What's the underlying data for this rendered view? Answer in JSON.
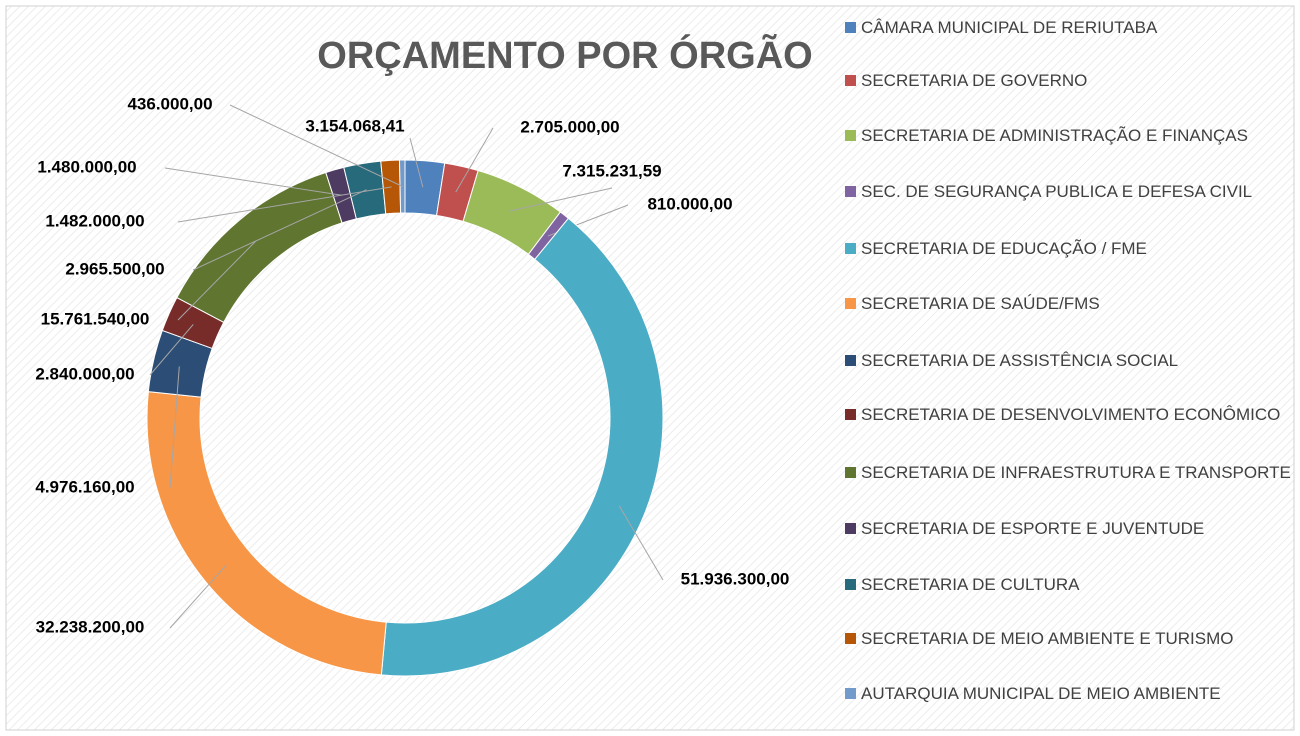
{
  "chart_data": {
    "type": "donut",
    "title": "ORÇAMENTO POR ÓRGÃO",
    "categories": [
      "CÂMARA MUNICIPAL DE RERIUTABA",
      "SECRETARIA DE GOVERNO",
      "SECRETARIA DE ADMINISTRAÇÃO E FINANÇAS",
      "SEC. DE SEGURANÇA PUBLICA E DEFESA CIVIL",
      "SECRETARIA DE EDUCAÇÃO / FME",
      "SECRETARIA DE SAÚDE/FMS",
      "SECRETARIA DE ASSISTÊNCIA SOCIAL",
      "SECRETARIA DE DESENVOLVIMENTO ECONÔMICO",
      "SECRETARIA DE INFRAESTRUTURA E TRANSPORTE",
      "SECRETARIA DE ESPORTE E JUVENTUDE",
      "SECRETARIA DE CULTURA",
      "SECRETARIA DE MEIO AMBIENTE E TURISMO",
      "AUTARQUIA MUNICIPAL DE MEIO AMBIENTE"
    ],
    "values": [
      3154068.41,
      2705000,
      7315231.59,
      810000,
      51936300,
      32238200,
      4976160,
      2840000,
      15761540,
      1480000,
      2965500,
      1482000,
      436000
    ],
    "value_labels": [
      "3.154.068,41",
      "2.705.000,00",
      "7.315.231,59",
      "810.000,00",
      "51.936.300,00",
      "32.238.200,00",
      "4.976.160,00",
      "2.840.000,00",
      "15.761.540,00",
      "1.480.000,00",
      "2.965.500,00",
      "1.482.000,00",
      "436.000,00"
    ],
    "colors": [
      "#4f81bd",
      "#c0504d",
      "#9bbb59",
      "#8064a2",
      "#4bacc6",
      "#f79646",
      "#2c4d75",
      "#772c2a",
      "#5f7530",
      "#4d3b62",
      "#276a7c",
      "#b65708",
      "#729aca"
    ]
  }
}
